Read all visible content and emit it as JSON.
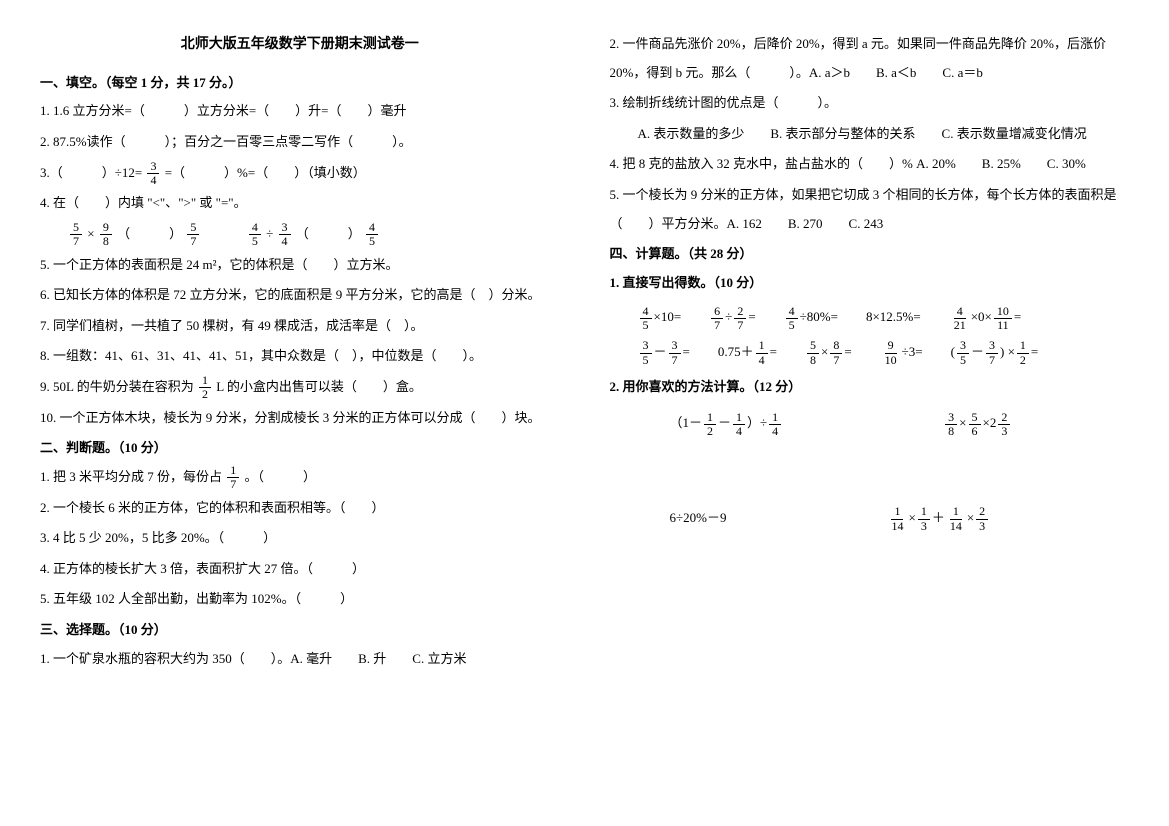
{
  "title": "北师大版五年级数学下册期末测试卷一",
  "s1": {
    "header": "一、填空。（每空 1 分，共 17 分。）",
    "q1": "1. 1.6 立方分米=（　　　）立方分米=（　　）升=（　　）毫升",
    "q2": "2. 87.5%读作（　　　）；百分之一百零三点零二写作（　　　）。",
    "q3a": "3.（　　　）÷12=",
    "q3b": " =（　　　）%=（　　）（填小数）",
    "q4": "4. 在（　　）内填 \"<\"、\">\" 或 \"=\"。",
    "q4row_a": "（　　　）",
    "q4row_b": "（　　　）",
    "q5": "5. 一个正方体的表面积是 24 m²，它的体积是（　　）立方米。",
    "q6": "6. 已知长方体的体积是 72 立方分米，它的底面积是 9 平方分米，它的高是（　）分米。",
    "q7": "7. 同学们植树，一共植了 50 棵树，有 49 棵成活，成活率是（　）。",
    "q8": "8. 一组数：41、61、31、41、41、51，其中众数是（　），中位数是（　　）。",
    "q9a": "9. 50L 的牛奶分装在容积为",
    "q9b": "L 的小盒内出售可以装（　　）盒。",
    "q10": "10. 一个正方体木块，棱长为 9 分米，分割成棱长 3 分米的正方体可以分成（　　）块。"
  },
  "s2": {
    "header": "二、判断题。（10 分）",
    "q1a": "1. 把 3 米平均分成 7 份，每份占",
    "q1b": "。（　　　）",
    "q2": "2. 一个棱长 6 米的正方体，它的体积和表面积相等。（　　）",
    "q3": "3. 4 比 5 少 20%，5 比多 20%。（　　　）",
    "q4": "4. 正方体的棱长扩大 3 倍，表面积扩大 27 倍。（　　　）",
    "q5": "5. 五年级 102 人全部出勤，出勤率为 102%。（　　　）"
  },
  "s3": {
    "header": "三、选择题。（10 分）",
    "q1": "1. 一个矿泉水瓶的容积大约为 350（　　）。A. 毫升　　B. 升　　C. 立方米",
    "q2": "2. 一件商品先涨价 20%，后降价 20%，得到 a 元。如果同一件商品先降价 20%，后涨价 20%，得到 b 元。那么（　　　）。A. a＞b　　B. a＜b　　C. a＝b",
    "q3": "3. 绘制折线统计图的优点是（　　　）。",
    "q3opts": "A. 表示数量的多少　　B. 表示部分与整体的关系　　C. 表示数量增减变化情况",
    "q4": "4. 把 8 克的盐放入 32 克水中，盐占盐水的（　　）% A. 20%　　B. 25%　　C. 30%",
    "q5": "5. 一个棱长为 9 分米的正方体，如果把它切成 3 个相同的长方体，每个长方体的表面积是（　　）平方分米。A. 162　　B. 270　　C. 243"
  },
  "s4": {
    "header": "四、计算题。（共 28 分）",
    "sub1": "1. 直接写出得数。（10 分）",
    "e1": "×10=",
    "e2a": "÷",
    "e2b": "=",
    "e3": "÷80%=",
    "e4": "8×12.5%=",
    "e5a": "×0×",
    "e5b": "=",
    "e6a": "－",
    "e6b": "=",
    "e7a": "0.75＋",
    "e7b": "=",
    "e8a": "×",
    "e8b": "=",
    "e9": "÷3=",
    "e10a": "(",
    "e10b": "－",
    "e10c": ") ×",
    "e10d": "=",
    "sub2": "2. 用你喜欢的方法计算。（12 分）",
    "c1a": "（1－",
    "c1b": "－",
    "c1c": "）÷",
    "c2a": "×",
    "c2b": "×2",
    "c3": "6÷20%－9",
    "c4a": "×",
    "c4b": "＋",
    "c4c": "×"
  },
  "fracs": {
    "n3_4": {
      "n": "3",
      "d": "4"
    },
    "n5_7": {
      "n": "5",
      "d": "7"
    },
    "n9_8": {
      "n": "9",
      "d": "8"
    },
    "n4_5": {
      "n": "4",
      "d": "5"
    },
    "n3_4b": {
      "n": "3",
      "d": "4"
    },
    "n1_2": {
      "n": "1",
      "d": "2"
    },
    "n1_7": {
      "n": "1",
      "d": "7"
    },
    "n6_7": {
      "n": "6",
      "d": "7"
    },
    "n2_7": {
      "n": "2",
      "d": "7"
    },
    "n4_21": {
      "n": "4",
      "d": "21"
    },
    "n10_11": {
      "n": "10",
      "d": "11"
    },
    "n3_5": {
      "n": "3",
      "d": "5"
    },
    "n3_7": {
      "n": "3",
      "d": "7"
    },
    "n1_4": {
      "n": "1",
      "d": "4"
    },
    "n5_8": {
      "n": "5",
      "d": "8"
    },
    "n8_7": {
      "n": "8",
      "d": "7"
    },
    "n9_10": {
      "n": "9",
      "d": "10"
    },
    "n3_8": {
      "n": "3",
      "d": "8"
    },
    "n5_6": {
      "n": "5",
      "d": "6"
    },
    "n2_3": {
      "n": "2",
      "d": "3"
    },
    "n1_14": {
      "n": "1",
      "d": "14"
    },
    "n1_3": {
      "n": "1",
      "d": "3"
    }
  }
}
